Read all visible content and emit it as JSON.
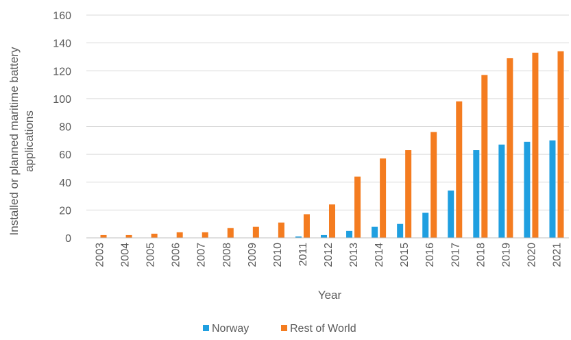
{
  "chart_data": {
    "type": "bar",
    "categories": [
      "2003",
      "2004",
      "2005",
      "2006",
      "2007",
      "2008",
      "2009",
      "2010",
      "2011",
      "2012",
      "2013",
      "2014",
      "2015",
      "2016",
      "2017",
      "2018",
      "2019",
      "2020",
      "2021"
    ],
    "series": [
      {
        "name": "Norway",
        "color": "#1f9fe0",
        "values": [
          0,
          0,
          0,
          0,
          0,
          0,
          0,
          0,
          1,
          2,
          5,
          8,
          10,
          18,
          34,
          63,
          67,
          69,
          70
        ]
      },
      {
        "name": "Rest of World",
        "color": "#f47c20",
        "values": [
          2,
          2,
          3,
          4,
          4,
          7,
          8,
          11,
          17,
          24,
          44,
          57,
          63,
          76,
          98,
          117,
          129,
          133,
          134
        ]
      }
    ],
    "xlabel": "Year",
    "ylabel": "Installed or planned maritime battery applications",
    "ylim": [
      0,
      160
    ],
    "yticks": [
      0,
      20,
      40,
      60,
      80,
      100,
      120,
      140,
      160
    ],
    "grid": true,
    "legend_position": "bottom"
  }
}
